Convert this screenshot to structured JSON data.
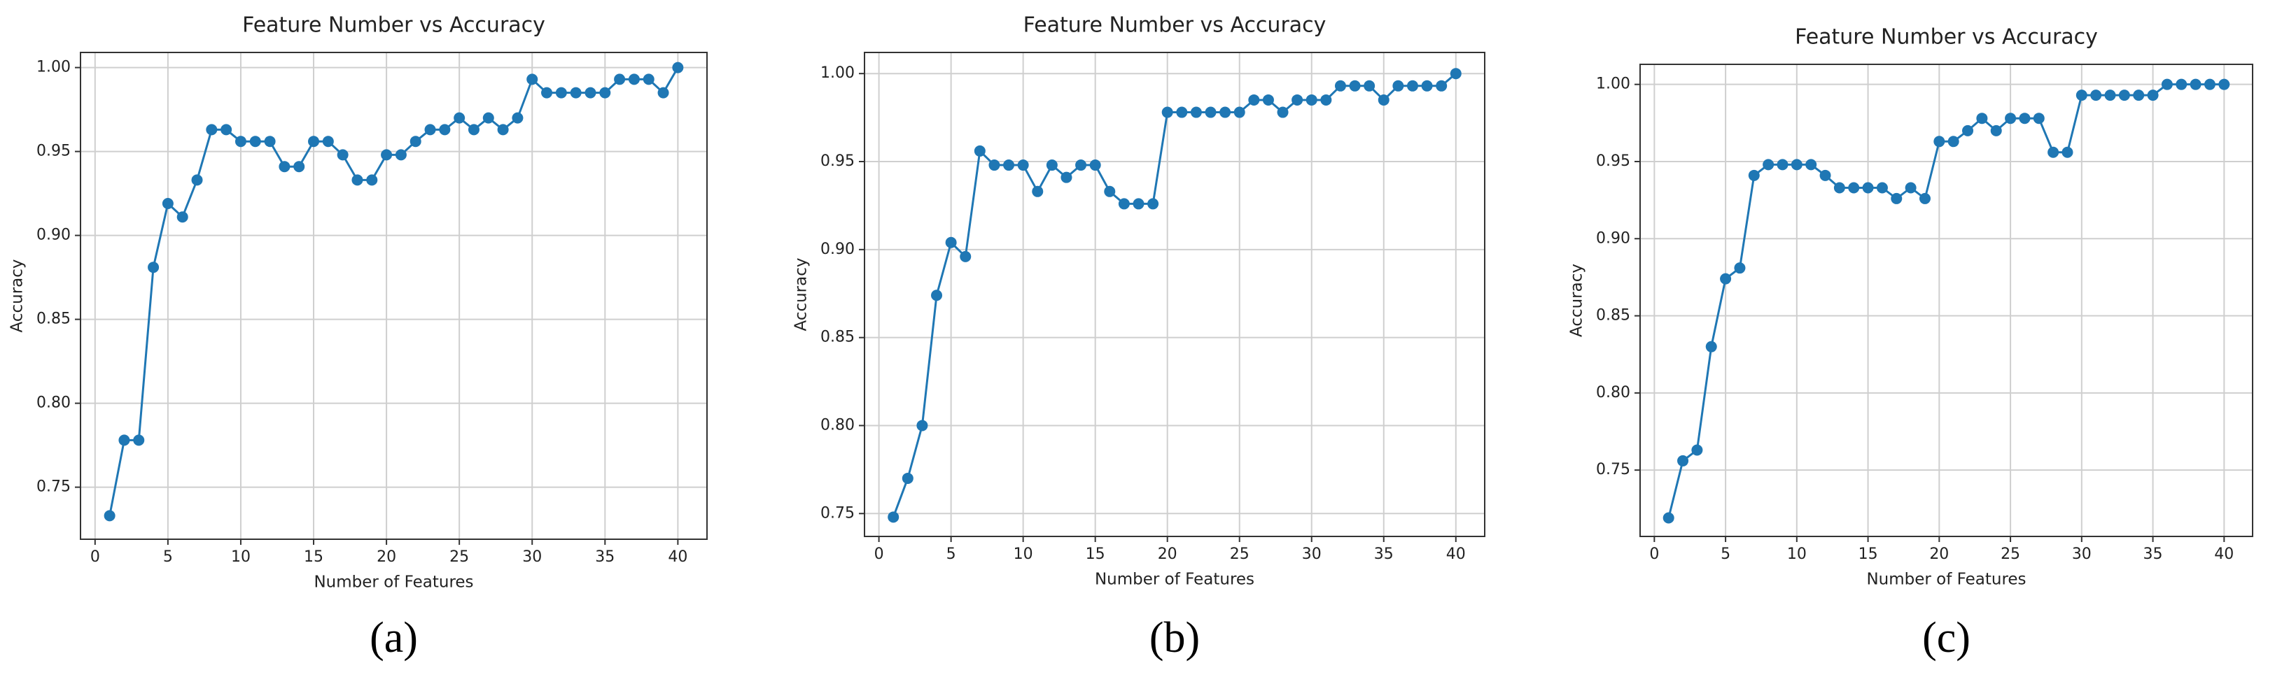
{
  "chart_data": [
    {
      "type": "line",
      "title": "Feature Number vs Accuracy",
      "x_label": "Number of Features",
      "y_label": "Accuracy",
      "caption": "(a)",
      "color": "#1f77b4",
      "grid": true,
      "markers": true,
      "x": [
        1,
        2,
        3,
        4,
        5,
        6,
        7,
        8,
        9,
        10,
        11,
        12,
        13,
        14,
        15,
        16,
        17,
        18,
        19,
        20,
        21,
        22,
        23,
        24,
        25,
        26,
        27,
        28,
        29,
        30,
        31,
        32,
        33,
        34,
        35,
        36,
        37,
        38,
        39,
        40
      ],
      "values": [
        0.733,
        0.778,
        0.778,
        0.881,
        0.919,
        0.911,
        0.933,
        0.963,
        0.963,
        0.956,
        0.956,
        0.956,
        0.941,
        0.941,
        0.956,
        0.956,
        0.948,
        0.933,
        0.933,
        0.948,
        0.948,
        0.956,
        0.963,
        0.963,
        0.97,
        0.963,
        0.97,
        0.963,
        0.97,
        0.993,
        0.985,
        0.985,
        0.985,
        0.985,
        0.985,
        0.993,
        0.993,
        0.993,
        0.985,
        1.0
      ],
      "xlim": [
        -1,
        42
      ],
      "xticks": [
        0,
        5,
        10,
        15,
        20,
        25,
        30,
        35,
        40
      ],
      "ylim": [
        0.719,
        1.009
      ],
      "yticks": [
        0.75,
        {
          "value": 0.8,
          "label": "0.80"
        },
        0.85,
        {
          "value": 0.9,
          "label": "0.90"
        },
        0.95,
        {
          "value": 1,
          "label": "1.00"
        }
      ]
    },
    {
      "type": "line",
      "title": "Feature Number vs Accuracy",
      "x_label": "Number of Features",
      "y_label": "Accuracy",
      "caption": "(b)",
      "color": "#1f77b4",
      "grid": true,
      "markers": true,
      "x": [
        1,
        2,
        3,
        4,
        5,
        6,
        7,
        8,
        9,
        10,
        11,
        12,
        13,
        14,
        15,
        16,
        17,
        18,
        19,
        20,
        21,
        22,
        23,
        24,
        25,
        26,
        27,
        28,
        29,
        30,
        31,
        32,
        33,
        34,
        35,
        36,
        37,
        38,
        39,
        40
      ],
      "values": [
        0.748,
        0.77,
        0.8,
        0.874,
        0.904,
        0.896,
        0.956,
        0.948,
        0.948,
        0.948,
        0.933,
        0.948,
        0.941,
        0.948,
        0.948,
        0.933,
        0.926,
        0.926,
        0.926,
        0.978,
        0.978,
        0.978,
        0.978,
        0.978,
        0.978,
        0.985,
        0.985,
        0.978,
        0.985,
        0.985,
        0.985,
        0.993,
        0.993,
        0.993,
        0.985,
        0.993,
        0.993,
        0.993,
        0.993,
        1.0
      ],
      "xlim": [
        -1,
        42
      ],
      "xticks": [
        0,
        5,
        10,
        15,
        20,
        25,
        30,
        35,
        40
      ],
      "ylim": [
        0.737,
        1.012
      ],
      "yticks": [
        0.75,
        {
          "value": 0.8,
          "label": "0.80"
        },
        0.85,
        {
          "value": 0.9,
          "label": "0.90"
        },
        0.95,
        {
          "value": 1,
          "label": "1.00"
        }
      ]
    },
    {
      "type": "line",
      "title": "Feature Number vs Accuracy",
      "x_label": "Number of Features",
      "y_label": "Accuracy",
      "caption": "(c)",
      "color": "#1f77b4",
      "grid": true,
      "markers": true,
      "x": [
        1,
        2,
        3,
        4,
        5,
        6,
        7,
        8,
        9,
        10,
        11,
        12,
        13,
        14,
        15,
        16,
        17,
        18,
        19,
        20,
        21,
        22,
        23,
        24,
        25,
        26,
        27,
        28,
        29,
        30,
        31,
        32,
        33,
        34,
        35,
        36,
        37,
        38,
        39,
        40
      ],
      "values": [
        0.719,
        0.756,
        0.763,
        0.83,
        0.874,
        0.881,
        0.941,
        0.948,
        0.948,
        0.948,
        0.948,
        0.941,
        0.933,
        0.933,
        0.933,
        0.933,
        0.926,
        0.933,
        0.926,
        0.963,
        0.963,
        0.97,
        0.978,
        0.97,
        0.978,
        0.978,
        0.978,
        0.956,
        0.956,
        0.993,
        0.993,
        0.993,
        0.993,
        0.993,
        0.993,
        1.0,
        1.0,
        1.0,
        1.0,
        1.0
      ],
      "xlim": [
        -1,
        42
      ],
      "xticks": [
        0,
        5,
        10,
        15,
        20,
        25,
        30,
        35,
        40
      ],
      "ylim": [
        0.707,
        1.013
      ],
      "yticks": [
        0.75,
        {
          "value": 0.8,
          "label": "0.80"
        },
        0.85,
        {
          "value": 0.9,
          "label": "0.90"
        },
        0.95,
        {
          "value": 1,
          "label": "1.00"
        }
      ]
    }
  ]
}
